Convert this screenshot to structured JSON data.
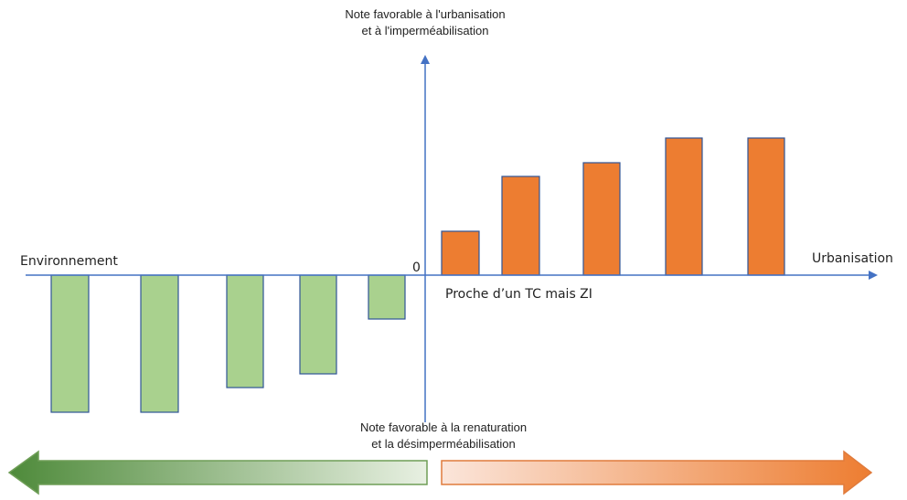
{
  "colors": {
    "axis": "#4472c4",
    "positive_fill": "#ed7d31",
    "negative_fill": "#a9d18e",
    "bar_stroke": "#2f5597",
    "arrow_left_dark": "#4e8a3a",
    "arrow_left_light": "#e8f0e2",
    "arrow_right_dark": "#ed7d31",
    "arrow_right_light": "#fbe5da"
  },
  "labels": {
    "y_top_line1": "Note favorable à l'urbanisation",
    "y_top_line2": "et à l'imperméabilisation",
    "y_bottom_line1": "Note favorable à la renaturation",
    "y_bottom_line2": "et la désimperméabilisation",
    "x_left": "Environnement",
    "x_right": "Urbanisation",
    "origin": "0",
    "annotation": "Proche d’un TC mais ZI"
  },
  "chart_data": {
    "type": "bar",
    "negative_bars": [
      -5,
      -5,
      -4.1,
      -3.6,
      -1.6
    ],
    "positive_bars": [
      1.6,
      3.6,
      4.1,
      5,
      5
    ]
  }
}
